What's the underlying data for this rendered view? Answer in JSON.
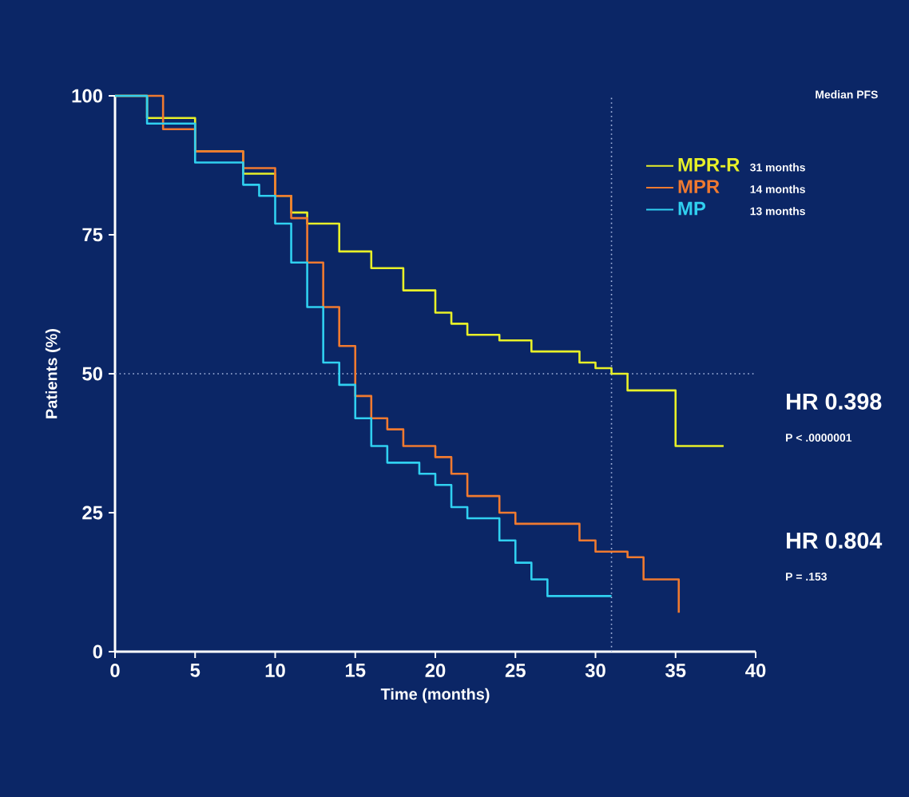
{
  "chart_data": {
    "type": "step",
    "xlabel": "Time (months)",
    "ylabel": "Patients (%)",
    "legend_title": "Median PFS",
    "xlim": [
      0,
      40
    ],
    "xticks": [
      0,
      5,
      10,
      15,
      20,
      25,
      30,
      35,
      40
    ],
    "ylim": [
      0,
      100
    ],
    "yticks": [
      0,
      25,
      50,
      75,
      100
    ],
    "legend": "top right",
    "grid": false,
    "series": [
      {
        "name": "MPR-R",
        "color": "#e8f028",
        "x": [
          0,
          2,
          5,
          8,
          10,
          11,
          12,
          14,
          16,
          18,
          20,
          21,
          22,
          24,
          26,
          28,
          29,
          30,
          31,
          32,
          35,
          38
        ],
        "values": [
          100,
          96,
          90,
          86,
          82,
          79,
          77,
          72,
          69,
          65,
          61,
          59,
          57,
          56,
          54,
          54,
          52,
          51,
          50,
          47,
          37,
          37
        ]
      },
      {
        "name": "MPR",
        "color": "#f07a30",
        "x": [
          0,
          3,
          5,
          8,
          10,
          11,
          12,
          13,
          14,
          15,
          16,
          17,
          18,
          20,
          21,
          22,
          24,
          25,
          28,
          29,
          30,
          32,
          33,
          35,
          35.2
        ],
        "values": [
          100,
          94,
          90,
          87,
          82,
          78,
          70,
          62,
          55,
          46,
          42,
          40,
          37,
          35,
          32,
          28,
          25,
          23,
          23,
          20,
          18,
          17,
          13,
          13,
          7
        ]
      },
      {
        "name": "MP",
        "color": "#30d0f0",
        "x": [
          0,
          2,
          5,
          8,
          9,
          10,
          11,
          12,
          13,
          14,
          15,
          16,
          17,
          19,
          20,
          21,
          22,
          24,
          25,
          26,
          27,
          31
        ],
        "values": [
          100,
          95,
          88,
          84,
          82,
          77,
          70,
          62,
          52,
          48,
          42,
          37,
          34,
          32,
          30,
          26,
          24,
          20,
          16,
          13,
          10,
          10
        ]
      }
    ],
    "ref_lines": [
      {
        "axis": "y",
        "value": 50,
        "color": "#a8b8e0",
        "line_style": "dotted"
      },
      {
        "axis": "x",
        "value": 31,
        "color": "#a8b8e0",
        "line_style": "dotted"
      }
    ],
    "annotations": [
      "31 months",
      "14 months",
      "13 months",
      "HR 0.398",
      "P < .0000001",
      "HR 0.804",
      "P = .153"
    ]
  }
}
